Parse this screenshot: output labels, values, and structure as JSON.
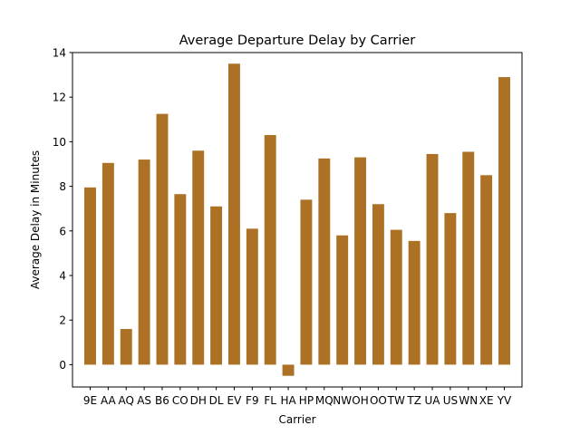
{
  "chart_data": {
    "type": "bar",
    "title": "Average Departure Delay by Carrier",
    "xlabel": "Carrier",
    "ylabel": "Average Delay in Minutes",
    "ylim": [
      -1,
      14
    ],
    "yticks": [
      0,
      2,
      4,
      6,
      8,
      10,
      12,
      14
    ],
    "grid": false,
    "bar_color": "#ad7126",
    "categories": [
      "9E",
      "AA",
      "AQ",
      "AS",
      "B6",
      "CO",
      "DH",
      "DL",
      "EV",
      "F9",
      "FL",
      "HA",
      "HP",
      "MQ",
      "NW",
      "OH",
      "OO",
      "TW",
      "TZ",
      "UA",
      "US",
      "WN",
      "XE",
      "YV"
    ],
    "values": [
      7.95,
      9.05,
      1.6,
      9.2,
      11.25,
      7.65,
      9.6,
      7.1,
      13.5,
      6.1,
      10.3,
      -0.5,
      7.4,
      9.25,
      5.8,
      9.3,
      7.2,
      6.05,
      5.55,
      9.45,
      6.8,
      9.55,
      8.5,
      12.9
    ]
  }
}
